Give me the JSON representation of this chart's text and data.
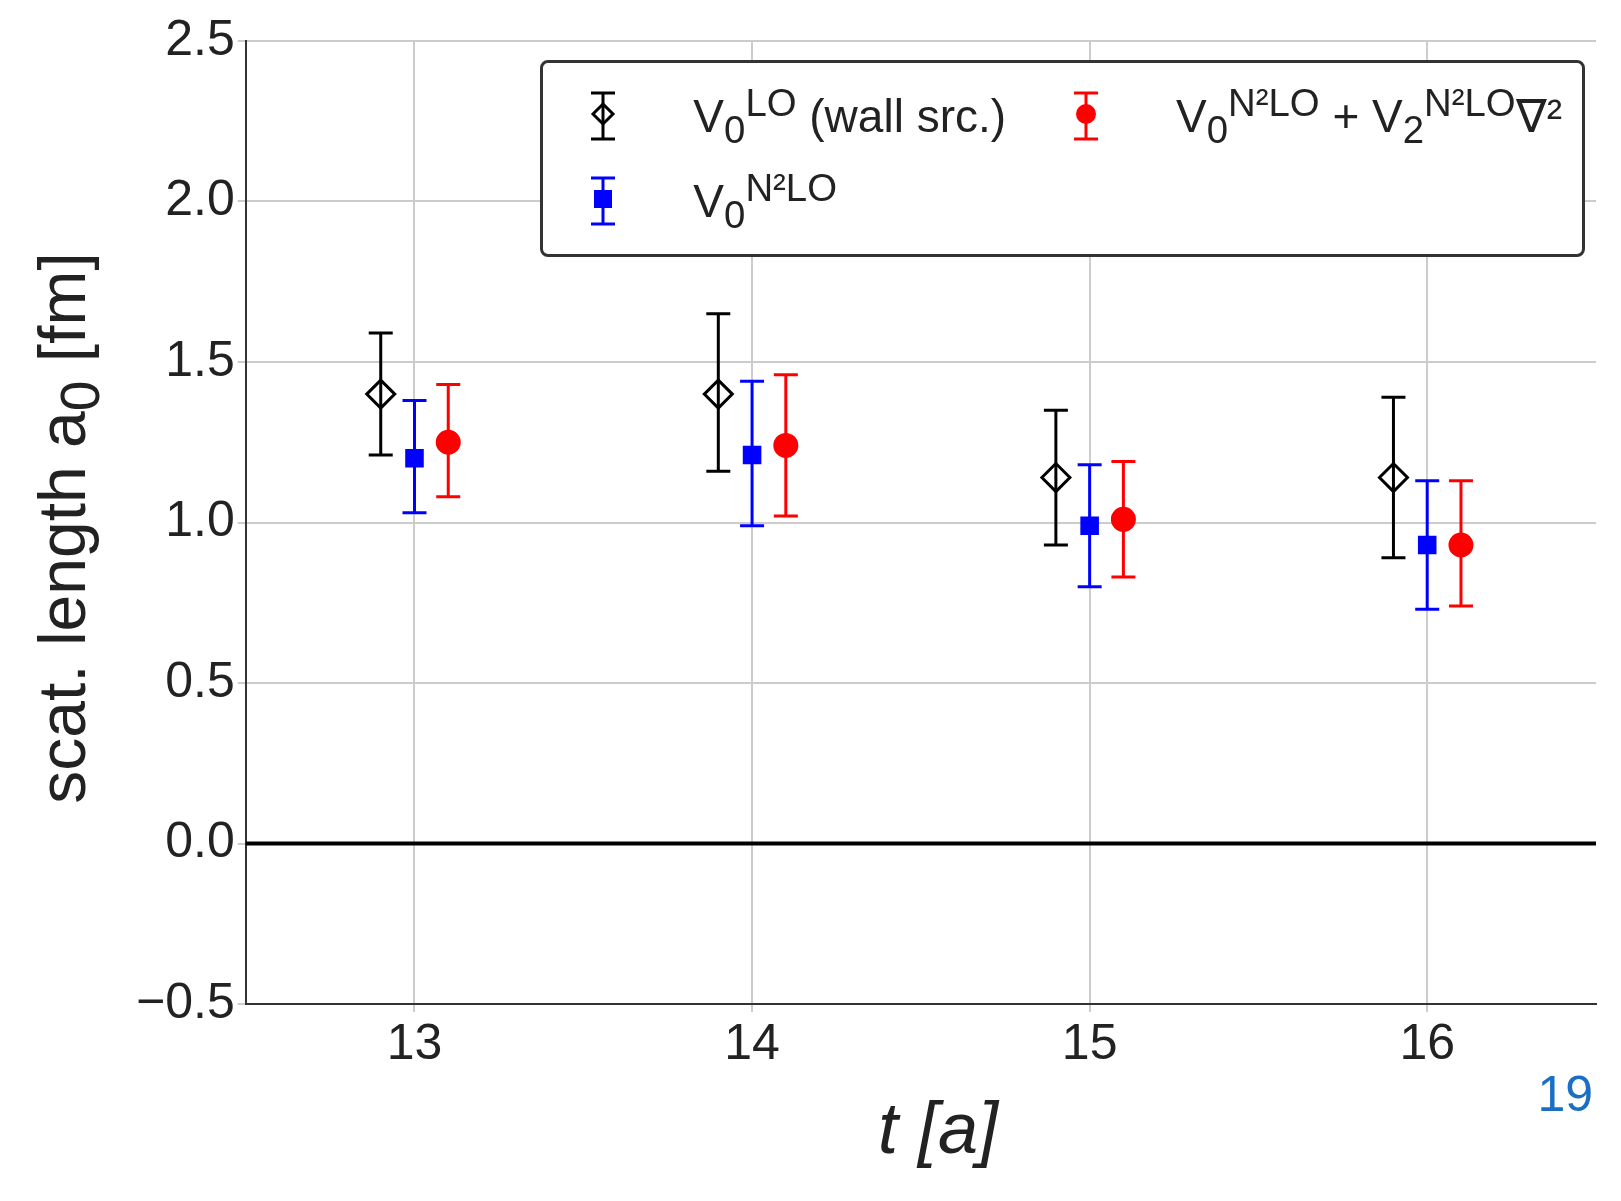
{
  "chart_data": {
    "type": "scatter",
    "xlabel": "t [a]",
    "ylabel": "scat. length a$_{0}$ [fm]",
    "xlim": [
      12.5,
      16.5
    ],
    "xticks": [
      13,
      14,
      15,
      16
    ],
    "ylim": [
      -0.5,
      2.5
    ],
    "yticks": [
      {
        "value": -0.5,
        "label": "−0.5"
      },
      {
        "value": 0,
        "label": "0.0"
      },
      {
        "value": 0.5,
        "label": "0.5"
      },
      {
        "value": 1,
        "label": "1.0"
      },
      {
        "value": 1.5,
        "label": "1.5"
      },
      {
        "value": 2,
        "label": "2.0"
      },
      {
        "value": 2.5,
        "label": "2.5"
      }
    ],
    "grid": true,
    "legend": "top right",
    "ref_lines": [
      {
        "axis": "y",
        "value": 0,
        "color": "#000000"
      }
    ],
    "annotations": [
      "19"
    ],
    "series": [
      {
        "name": "V$_{0}$$^{LO}$ (wall src.)",
        "color": "#000000",
        "marker": "diamond",
        "x": [
          12.9,
          13.9,
          14.9,
          15.9
        ],
        "values": [
          1.4,
          1.4,
          1.14,
          1.14
        ],
        "errors": [
          [
            1.21,
            1.59
          ],
          [
            1.16,
            1.65
          ],
          [
            0.93,
            1.35
          ],
          [
            0.89,
            1.39
          ]
        ]
      },
      {
        "name": "V$_{0}$$^{N²LO}$",
        "color": "#0000ff",
        "marker": "square",
        "x": [
          13,
          14,
          15,
          16
        ],
        "values": [
          1.2,
          1.21,
          0.99,
          0.93
        ],
        "errors": [
          [
            1.03,
            1.38
          ],
          [
            0.99,
            1.44
          ],
          [
            0.8,
            1.18
          ],
          [
            0.73,
            1.13
          ]
        ]
      },
      {
        "name": "V$_{0}$$^{N²LO}$ + V$_{2}$$^{N²LO}$∇²",
        "color": "#ff0000",
        "marker": "circle",
        "x": [
          13.1,
          14.1,
          15.1,
          16.1
        ],
        "values": [
          1.25,
          1.24,
          1.01,
          0.93
        ],
        "errors": [
          [
            1.08,
            1.43
          ],
          [
            1.02,
            1.46
          ],
          [
            0.83,
            1.19
          ],
          [
            0.74,
            1.13
          ]
        ]
      }
    ]
  }
}
